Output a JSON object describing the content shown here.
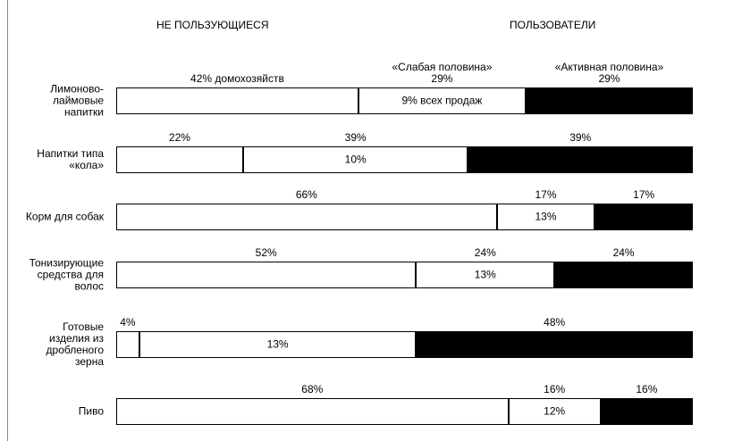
{
  "chart_data": {
    "type": "bar",
    "orientation": "horizontal",
    "stacked": true,
    "headers": [
      "НЕ ПОЛЬЗУЮЩИЕСЯ",
      "ПОЛЬЗОВАТЕЛИ"
    ],
    "categories": [
      "Лимоново-\nлаймовые\nнапитки",
      "Напитки типа\n«кола»",
      "Корм для собак",
      "Тонизирующие\nсредства для\nволос",
      "Готовые\nизделия из\nдробленого\nзерна",
      "Пиво"
    ],
    "xlim": [
      0,
      100
    ],
    "series": [
      {
        "color": "#ffffff",
        "values": [
          42,
          22,
          66,
          52,
          4,
          68
        ],
        "value_labels": [
          "42% домохозяйств",
          "22%",
          "66%",
          "52%",
          "4%",
          "68%"
        ]
      },
      {
        "color": "#ffffff",
        "values": [
          29,
          39,
          17,
          24,
          48,
          16
        ],
        "value_labels": [
          "«Слабая половина»\n29%",
          "39%",
          "17%",
          "24%",
          null,
          "16%"
        ]
      },
      {
        "color": "#000000",
        "values": [
          29,
          39,
          17,
          24,
          48,
          16
        ],
        "value_labels": [
          "«Активная половина»\n29%",
          "39%",
          "17%",
          "24%",
          "48%",
          "16%"
        ]
      }
    ],
    "inner_values": [
      9,
      10,
      13,
      13,
      13,
      12
    ],
    "inner_value_labels": [
      "9% всех продаж",
      "10%",
      "13%",
      "13%",
      "13%",
      "12%"
    ]
  }
}
